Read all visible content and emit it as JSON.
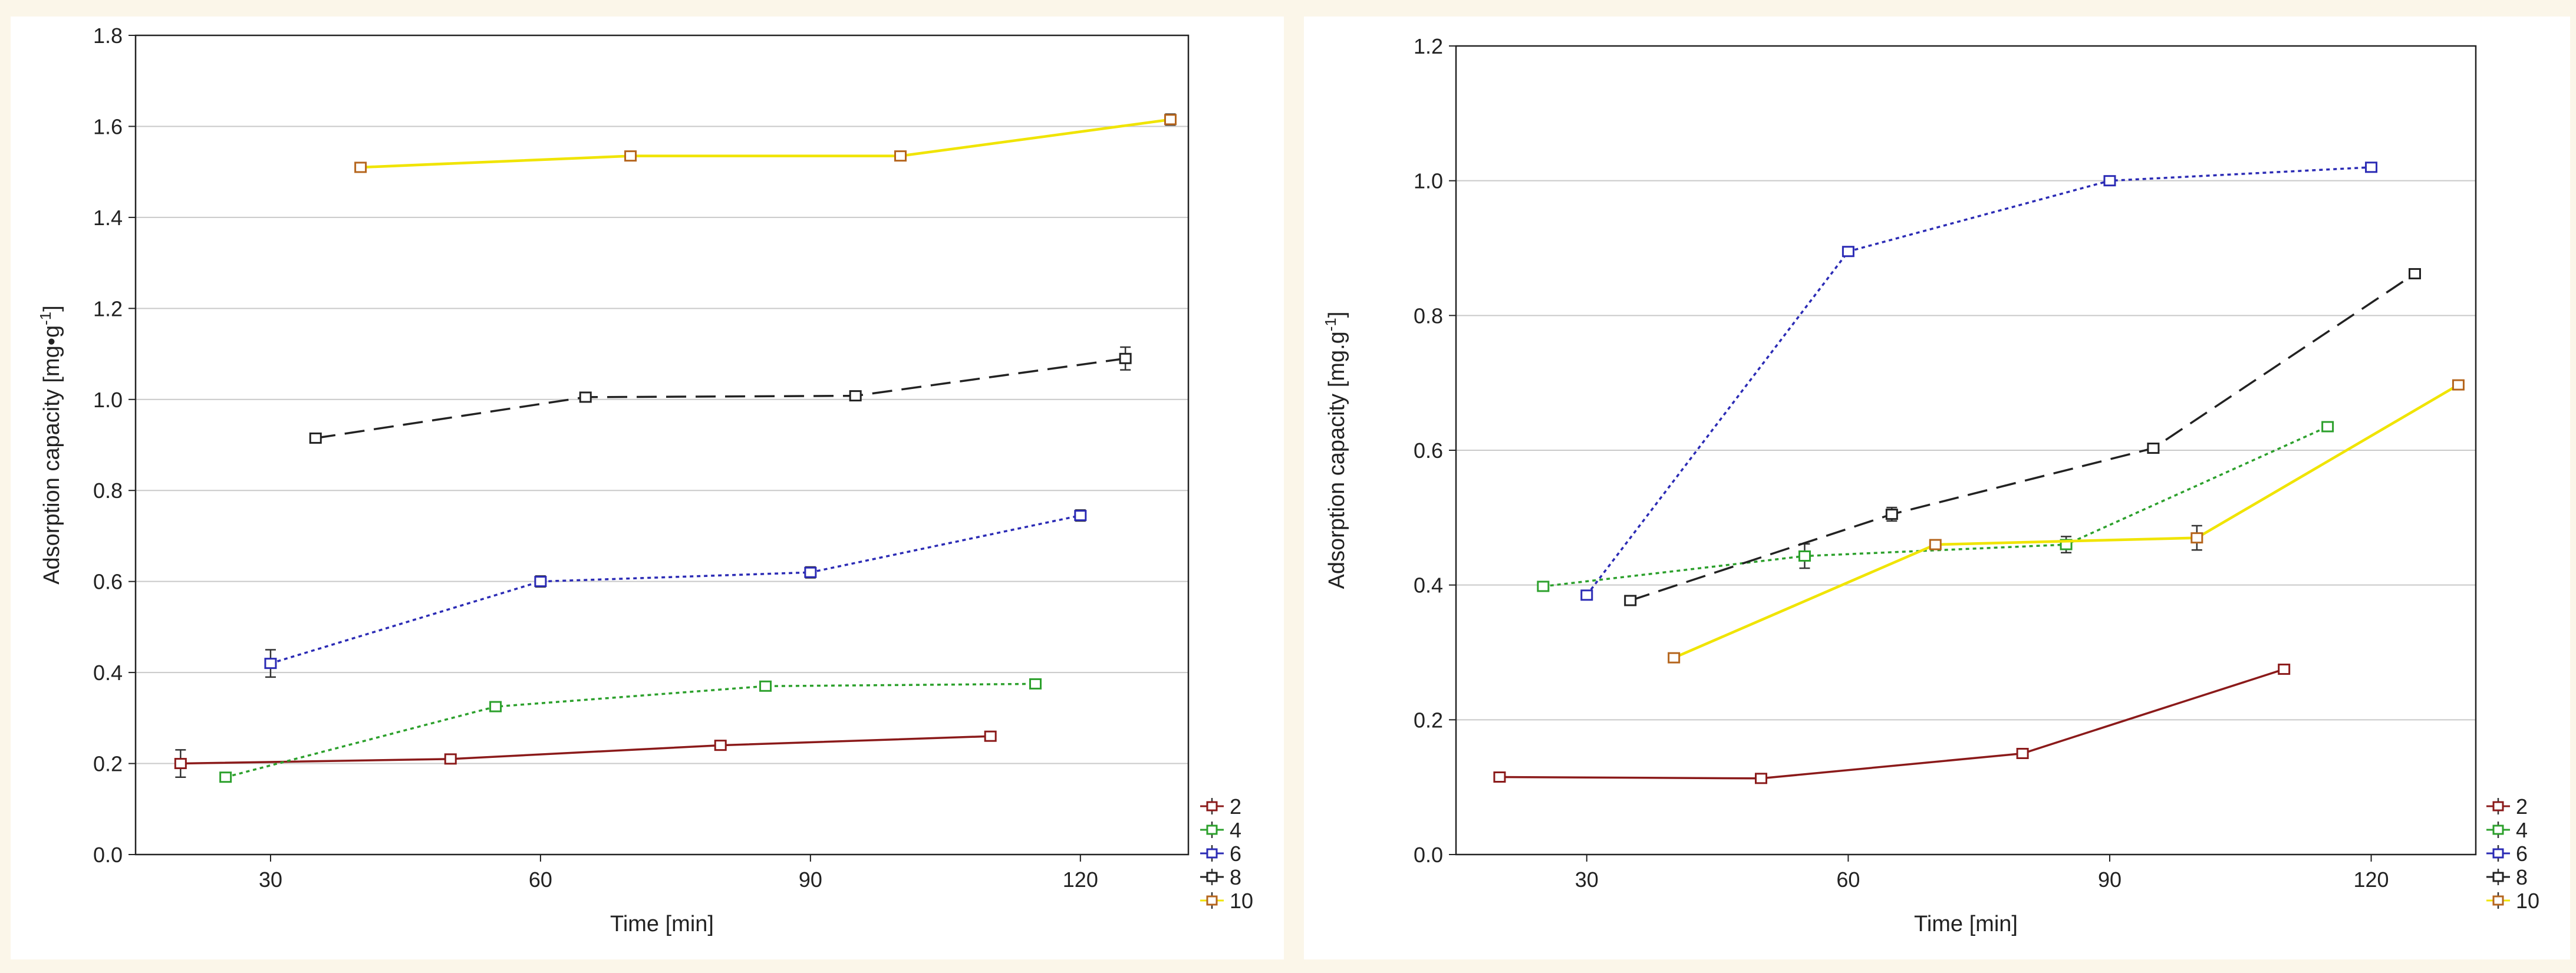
{
  "chart_data": [
    {
      "type": "line",
      "title": "",
      "xlabel": "Time [min]",
      "ylabel": "Adsorption capacity [mg•g",
      "ylabel_sup": "-1",
      "ylabel_end": "]",
      "xlim": [
        15,
        132
      ],
      "ylim": [
        0,
        1.8
      ],
      "xticks": [
        30,
        60,
        90,
        120
      ],
      "xtick_labels": [
        "30",
        "60",
        "90",
        "120"
      ],
      "yticks": [
        0,
        0.2,
        0.4,
        0.6,
        0.8,
        1.0,
        1.2,
        1.4,
        1.6,
        1.8
      ],
      "ytick_labels": [
        "0.0",
        "0.2",
        "0.4",
        "0.6",
        "0.8",
        "1.0",
        "1.2",
        "1.4",
        "1.6",
        "1.8"
      ],
      "grid": true,
      "legend_position": "bottom-right-outside",
      "series": [
        {
          "name": "2",
          "color": "#8b1a1a",
          "dash": "solid",
          "x": [
            20,
            50,
            80,
            110
          ],
          "y": [
            0.2,
            0.21,
            0.24,
            0.26
          ],
          "err": [
            0.03,
            0.008,
            0.008,
            0.008
          ]
        },
        {
          "name": "4",
          "color": "#2ca02c",
          "dash": "dotted",
          "x": [
            25,
            55,
            85,
            115
          ],
          "y": [
            0.17,
            0.325,
            0.37,
            0.375
          ],
          "err": [
            0.008,
            0.008,
            0.008,
            0.008
          ]
        },
        {
          "name": "6",
          "color": "#2b2bb5",
          "dash": "dotted",
          "x": [
            30,
            60,
            90,
            120
          ],
          "y": [
            0.42,
            0.6,
            0.62,
            0.745
          ],
          "err": [
            0.03,
            0.012,
            0.012,
            0.012
          ]
        },
        {
          "name": "8",
          "color": "#222222",
          "dash": "dashed",
          "x": [
            35,
            65,
            95,
            125
          ],
          "y": [
            0.915,
            1.005,
            1.008,
            1.09
          ],
          "err": [
            0.008,
            0.008,
            0.008,
            0.025
          ]
        },
        {
          "name": "10",
          "color": "#f0e400",
          "marker_color": "#b5651d",
          "dash": "solid",
          "x": [
            40,
            70,
            100,
            130
          ],
          "y": [
            1.51,
            1.535,
            1.535,
            1.615
          ],
          "err": [
            0.008,
            0.008,
            0.008,
            0.012
          ]
        }
      ]
    },
    {
      "type": "line",
      "title": "",
      "xlabel": "Time [min]",
      "ylabel": "Adsorption capacity [mg.g",
      "ylabel_sup": "-1",
      "ylabel_end": "]",
      "xlim": [
        15,
        132
      ],
      "ylim": [
        0,
        1.2
      ],
      "xticks": [
        30,
        60,
        90,
        120
      ],
      "xtick_labels": [
        "30",
        "60",
        "90",
        "120"
      ],
      "yticks": [
        0,
        0.2,
        0.4,
        0.6,
        0.8,
        1.0,
        1.2
      ],
      "ytick_labels": [
        "0.0",
        "0.2",
        "0.4",
        "0.6",
        "0.8",
        "1.0",
        "1.2"
      ],
      "grid": true,
      "legend_position": "bottom-right-outside",
      "series": [
        {
          "name": "2",
          "color": "#8b1a1a",
          "dash": "solid",
          "x": [
            20,
            50,
            80,
            110
          ],
          "y": [
            0.115,
            0.113,
            0.15,
            0.275
          ],
          "err": [
            0.006,
            0.006,
            0.006,
            0.006
          ]
        },
        {
          "name": "4",
          "color": "#2ca02c",
          "dash": "dotted",
          "x": [
            25,
            55,
            85,
            115
          ],
          "y": [
            0.398,
            0.443,
            0.46,
            0.635
          ],
          "err": [
            0.006,
            0.018,
            0.012,
            0.006
          ]
        },
        {
          "name": "6",
          "color": "#2b2bb5",
          "dash": "dotted",
          "x": [
            30,
            60,
            90,
            120
          ],
          "y": [
            0.385,
            0.895,
            1.0,
            1.02
          ],
          "err": [
            0.006,
            0.006,
            0.006,
            0.006
          ]
        },
        {
          "name": "8",
          "color": "#222222",
          "dash": "dashed",
          "x": [
            35,
            65,
            95,
            125
          ],
          "y": [
            0.377,
            0.505,
            0.603,
            0.862
          ],
          "err": [
            0.006,
            0.01,
            0.006,
            0.006
          ]
        },
        {
          "name": "10",
          "color": "#f0e400",
          "marker_color": "#b5651d",
          "dash": "solid",
          "x": [
            40,
            70,
            100,
            130
          ],
          "y": [
            0.292,
            0.46,
            0.47,
            0.697
          ],
          "err": [
            0.006,
            0.006,
            0.018,
            0.006
          ]
        }
      ]
    }
  ]
}
